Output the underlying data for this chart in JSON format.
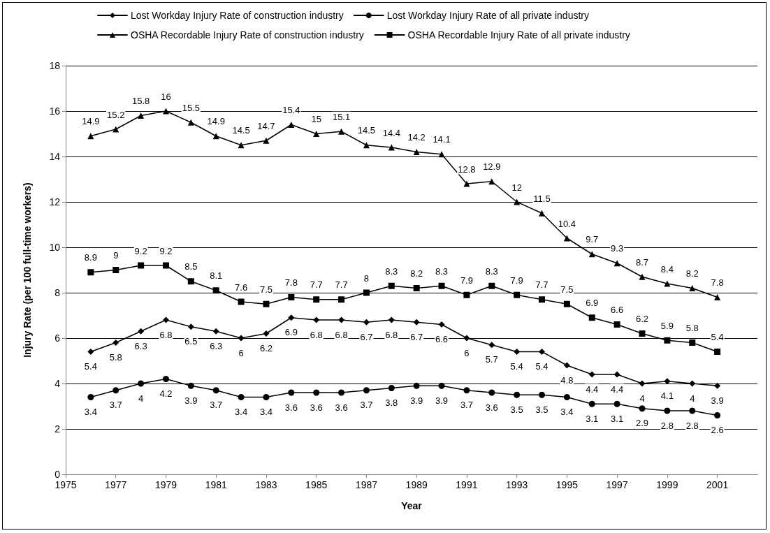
{
  "chart_data": {
    "type": "line",
    "xlabel": "Year",
    "ylabel": "Injury Rate (per 100 full-time workers)",
    "x": [
      1976,
      1977,
      1978,
      1979,
      1980,
      1981,
      1982,
      1983,
      1984,
      1985,
      1986,
      1987,
      1988,
      1989,
      1990,
      1991,
      1992,
      1993,
      1994,
      1995,
      1996,
      1997,
      1998,
      1999,
      2000,
      2001
    ],
    "series": [
      {
        "name": "Lost Workday Injury Rate of construction industry",
        "color": "#000000",
        "marker": "diamond",
        "values": [
          5.4,
          5.8,
          6.3,
          6.8,
          6.5,
          6.3,
          6,
          6.2,
          6.9,
          6.8,
          6.8,
          6.7,
          6.8,
          6.7,
          6.6,
          6,
          5.7,
          5.4,
          5.4,
          4.8,
          4.4,
          4.4,
          4,
          4.1,
          4,
          3.9
        ]
      },
      {
        "name": "Lost Workday Injury Rate of all private industry",
        "color": "#000000",
        "marker": "circle",
        "values": [
          3.4,
          3.7,
          4,
          4.2,
          3.9,
          3.7,
          3.4,
          3.4,
          3.6,
          3.6,
          3.6,
          3.7,
          3.8,
          3.9,
          3.9,
          3.7,
          3.6,
          3.5,
          3.5,
          3.4,
          3.1,
          3.1,
          2.9,
          2.8,
          2.8,
          2.6
        ]
      },
      {
        "name": "OSHA Recordable Injury Rate of construction industry",
        "color": "#000000",
        "marker": "triangle",
        "values": [
          14.9,
          15.2,
          15.8,
          16,
          15.5,
          14.9,
          14.5,
          14.7,
          15.4,
          15,
          15.1,
          14.5,
          14.4,
          14.2,
          14.1,
          12.8,
          12.9,
          12,
          11.5,
          10.4,
          9.7,
          9.3,
          8.7,
          8.4,
          8.2,
          7.8
        ]
      },
      {
        "name": "OSHA Recordable Injury Rate of all private industry",
        "color": "#000000",
        "marker": "square",
        "values": [
          8.9,
          9,
          9.2,
          9.2,
          8.5,
          8.1,
          7.6,
          7.5,
          7.8,
          7.7,
          7.7,
          8,
          8.3,
          8.2,
          8.3,
          7.9,
          8.3,
          7.9,
          7.7,
          7.5,
          6.9,
          6.6,
          6.2,
          5.9,
          5.8,
          5.4
        ]
      }
    ],
    "xlim": [
      1975,
      2002.6
    ],
    "xticks": [
      1975,
      1977,
      1979,
      1981,
      1983,
      1985,
      1987,
      1989,
      1991,
      1993,
      1995,
      1997,
      1999,
      2001
    ],
    "ylim": [
      0,
      18
    ],
    "yticks": [
      0,
      2,
      4,
      6,
      8,
      10,
      12,
      14,
      16,
      18
    ],
    "grid": "y",
    "legend": "top",
    "data_labels": true,
    "line_style": "solid"
  }
}
